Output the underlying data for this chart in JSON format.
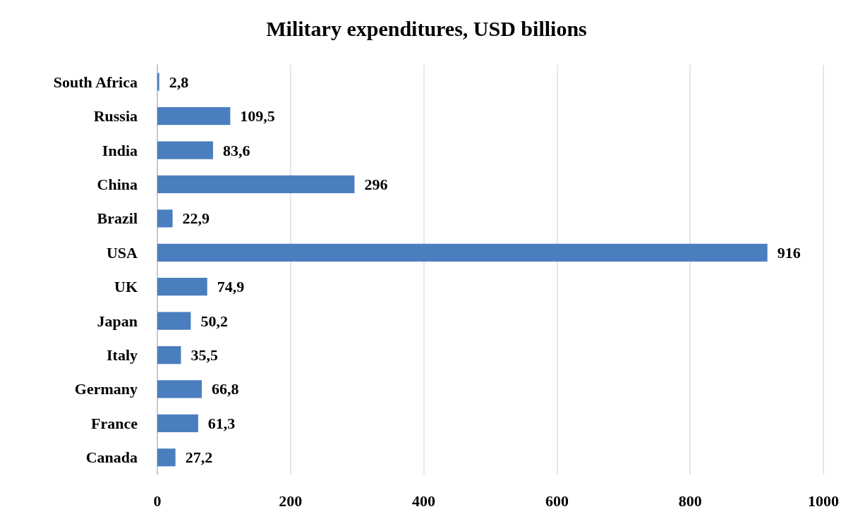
{
  "chart_data": {
    "type": "bar",
    "orientation": "horizontal",
    "title": "Military expenditures, USD billions",
    "categories": [
      "South Africa",
      "Russia",
      "India",
      "China",
      "Brazil",
      "USA",
      "UK",
      "Japan",
      "Italy",
      "Germany",
      "France",
      "Canada"
    ],
    "values": [
      2.8,
      109.5,
      83.6,
      296,
      22.9,
      916,
      74.9,
      50.2,
      35.5,
      66.8,
      61.3,
      27.2
    ],
    "value_labels": [
      "2,8",
      "109,5",
      "83,6",
      "296",
      "22,9",
      "916",
      "74,9",
      "50,2",
      "35,5",
      "66,8",
      "61,3",
      "27,2"
    ],
    "color": "#4a7ebf",
    "xlim": [
      0,
      1000
    ],
    "xticks": [
      0,
      200,
      400,
      600,
      800,
      1000
    ],
    "grid": "x"
  }
}
